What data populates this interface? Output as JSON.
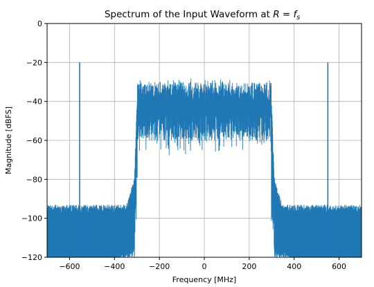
{
  "chart_data": {
    "type": "line",
    "title_prefix": "Spectrum of the Input Waveform at ",
    "title_math": "R = f",
    "title_math_sub": "s",
    "xlabel": "Frequency [MHz]",
    "ylabel": "Magnitude [dBFS]",
    "xlim": [
      -700,
      700
    ],
    "ylim": [
      -120,
      0
    ],
    "xticks": [
      -600,
      -400,
      -200,
      0,
      200,
      400,
      600
    ],
    "yticks": [
      0,
      -20,
      -40,
      -60,
      -80,
      -100,
      -120
    ],
    "xtick_labels": [
      "−600",
      "−400",
      "−200",
      "0",
      "200",
      "400",
      "600"
    ],
    "ytick_labels": [
      "0",
      "−20",
      "−40",
      "−60",
      "−80",
      "−100",
      "−120"
    ],
    "grid": true,
    "series_color": "#1f77b4",
    "spectrum": {
      "passband_mhz": [
        -310,
        310
      ],
      "passband_top_db": -40,
      "passband_peak_db": -29,
      "passband_dip_db": -70,
      "transition_edge_db": -80,
      "skirt_db_at_edges": -95,
      "noise_floor_db": -120,
      "tones": [
        {
          "x": -555,
          "y": -20
        },
        {
          "x": 550,
          "y": -20
        }
      ]
    }
  }
}
